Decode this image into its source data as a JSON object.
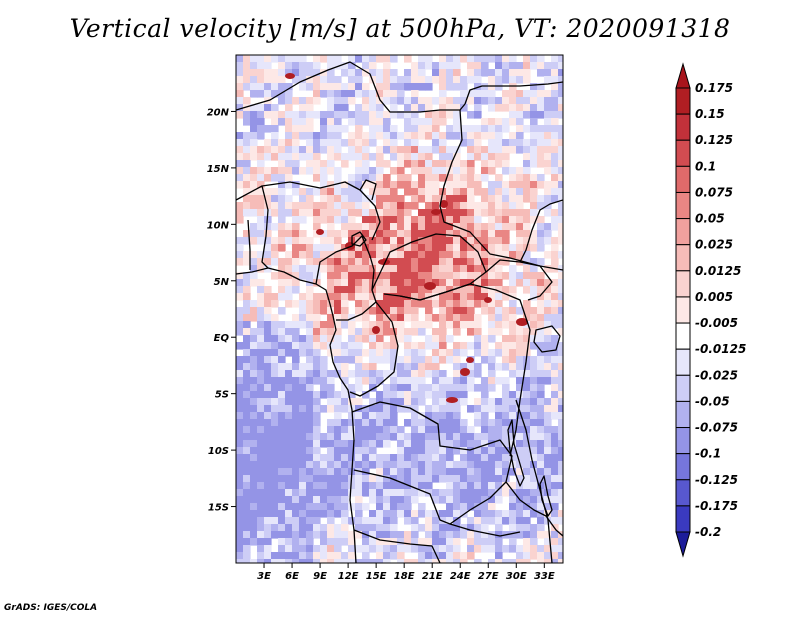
{
  "title": "Vertical velocity [m/s] at 500hPa, VT: 2020091318",
  "credit": "GrADS: IGES/COLA",
  "map": {
    "region": "Central Africa",
    "lat_labels": [
      {
        "value": 20,
        "label": "20N"
      },
      {
        "value": 15,
        "label": "15N"
      },
      {
        "value": 10,
        "label": "10N"
      },
      {
        "value": 5,
        "label": "5N"
      },
      {
        "value": 0,
        "label": "EQ"
      },
      {
        "value": -5,
        "label": "5S"
      },
      {
        "value": -10,
        "label": "10S"
      },
      {
        "value": -15,
        "label": "15S"
      }
    ],
    "lon_labels": [
      {
        "value": 3,
        "label": "3E"
      },
      {
        "value": 6,
        "label": "6E"
      },
      {
        "value": 9,
        "label": "9E"
      },
      {
        "value": 12,
        "label": "12E"
      },
      {
        "value": 15,
        "label": "15E"
      },
      {
        "value": 18,
        "label": "18E"
      },
      {
        "value": 21,
        "label": "21E"
      },
      {
        "value": 24,
        "label": "24E"
      },
      {
        "value": 27,
        "label": "27E"
      },
      {
        "value": 30,
        "label": "30E"
      },
      {
        "value": 33,
        "label": "33E"
      }
    ]
  },
  "colorbar": {
    "levels": [
      {
        "label": "0.175",
        "color": "#b01e23"
      },
      {
        "label": "0.15",
        "color": "#c2313a"
      },
      {
        "label": "0.125",
        "color": "#d24c51"
      },
      {
        "label": "0.1",
        "color": "#df6a6a"
      },
      {
        "label": "0.075",
        "color": "#e98684"
      },
      {
        "label": "0.05",
        "color": "#f1a19e"
      },
      {
        "label": "0.025",
        "color": "#f6bcb8"
      },
      {
        "label": "0.0125",
        "color": "#fad3d0"
      },
      {
        "label": "0.005",
        "color": "#fde8e6"
      },
      {
        "label": "-0.005",
        "color": "#ffffff"
      },
      {
        "label": "-0.0125",
        "color": "#e6e6fb"
      },
      {
        "label": "-0.025",
        "color": "#cdcdf6"
      },
      {
        "label": "-0.05",
        "color": "#b1b1ef"
      },
      {
        "label": "-0.075",
        "color": "#9494e6"
      },
      {
        "label": "-0.1",
        "color": "#7676dc"
      },
      {
        "label": "-0.125",
        "color": "#5858cf"
      },
      {
        "label": "-0.175",
        "color": "#3a3ac0"
      },
      {
        "label": "-0.2",
        "color": "#2121a8"
      }
    ],
    "top_color": "#a8141c",
    "bottom_color": "#1c1c9a"
  }
}
